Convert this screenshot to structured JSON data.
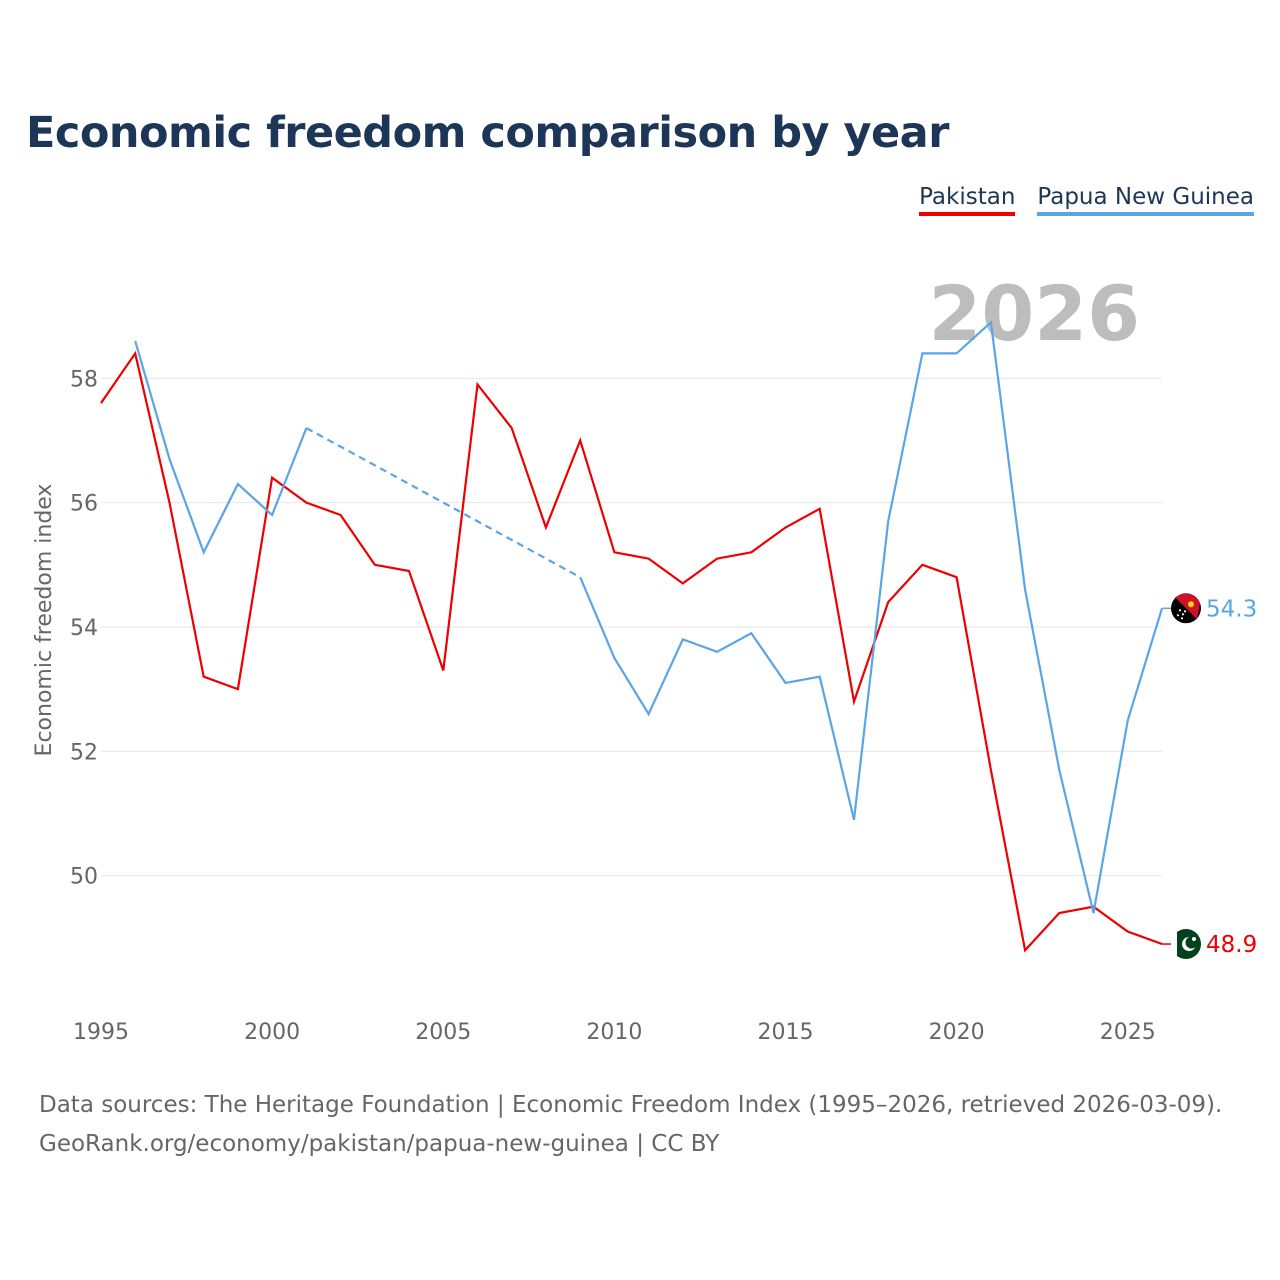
{
  "title": "Economic freedom comparison by year",
  "legend": [
    {
      "label": "Pakistan",
      "color": "#ee0000"
    },
    {
      "label": "Papua New Guinea",
      "color": "#5aa5e6"
    }
  ],
  "footer": {
    "line1": "Data sources: The Heritage Foundation | Economic Freedom Index (1995–2026, retrieved 2026-03-09).",
    "line2": "GeoRank.org/economy/pakistan/papua-new-guinea | CC BY"
  },
  "chart_data": {
    "type": "line",
    "title": "Economic freedom comparison by year",
    "ylabel": "Economic freedom index",
    "xlabel": "",
    "year_watermark": "2026",
    "xlim": [
      1995,
      2026
    ],
    "ylim": [
      48,
      59.5
    ],
    "x_ticks": [
      1995,
      2000,
      2005,
      2010,
      2015,
      2020,
      2025
    ],
    "y_ticks": [
      50,
      52,
      54,
      56,
      58
    ],
    "grid": true,
    "legend_position": "top-right",
    "series": [
      {
        "name": "Pakistan",
        "color": "#ee0000",
        "end_label": "48.9",
        "points": [
          [
            1995,
            57.6
          ],
          [
            1996,
            58.4
          ],
          [
            1997,
            56.0
          ],
          [
            1998,
            53.2
          ],
          [
            1999,
            53.0
          ],
          [
            2000,
            56.4
          ],
          [
            2001,
            56.0
          ],
          [
            2002,
            55.8
          ],
          [
            2003,
            55.0
          ],
          [
            2004,
            54.9
          ],
          [
            2005,
            53.3
          ],
          [
            2006,
            57.9
          ],
          [
            2007,
            57.2
          ],
          [
            2008,
            55.6
          ],
          [
            2009,
            57.0
          ],
          [
            2010,
            55.2
          ],
          [
            2011,
            55.1
          ],
          [
            2012,
            54.7
          ],
          [
            2013,
            55.1
          ],
          [
            2014,
            55.2
          ],
          [
            2015,
            55.6
          ],
          [
            2016,
            55.9
          ],
          [
            2017,
            52.8
          ],
          [
            2018,
            54.4
          ],
          [
            2019,
            55.0
          ],
          [
            2020,
            54.8
          ],
          [
            2021,
            51.7
          ],
          [
            2022,
            48.8
          ],
          [
            2023,
            49.4
          ],
          [
            2024,
            49.5
          ],
          [
            2025,
            49.1
          ],
          [
            2026,
            48.9
          ]
        ]
      },
      {
        "name": "Papua New Guinea",
        "color": "#5aa5e6",
        "end_label": "54.3",
        "gap": [
          2001,
          2009
        ],
        "points": [
          [
            1996,
            58.6
          ],
          [
            1997,
            56.7
          ],
          [
            1998,
            55.2
          ],
          [
            1999,
            56.3
          ],
          [
            2000,
            55.8
          ],
          [
            2001,
            57.2
          ],
          [
            2009,
            54.8
          ],
          [
            2010,
            53.5
          ],
          [
            2011,
            52.6
          ],
          [
            2012,
            53.8
          ],
          [
            2013,
            53.6
          ],
          [
            2014,
            53.9
          ],
          [
            2015,
            53.1
          ],
          [
            2016,
            53.2
          ],
          [
            2017,
            50.9
          ],
          [
            2018,
            55.7
          ],
          [
            2019,
            58.4
          ],
          [
            2020,
            58.4
          ],
          [
            2021,
            58.9
          ],
          [
            2022,
            54.6
          ],
          [
            2023,
            51.7
          ],
          [
            2024,
            49.4
          ],
          [
            2025,
            52.5
          ],
          [
            2026,
            54.3
          ]
        ]
      }
    ]
  }
}
